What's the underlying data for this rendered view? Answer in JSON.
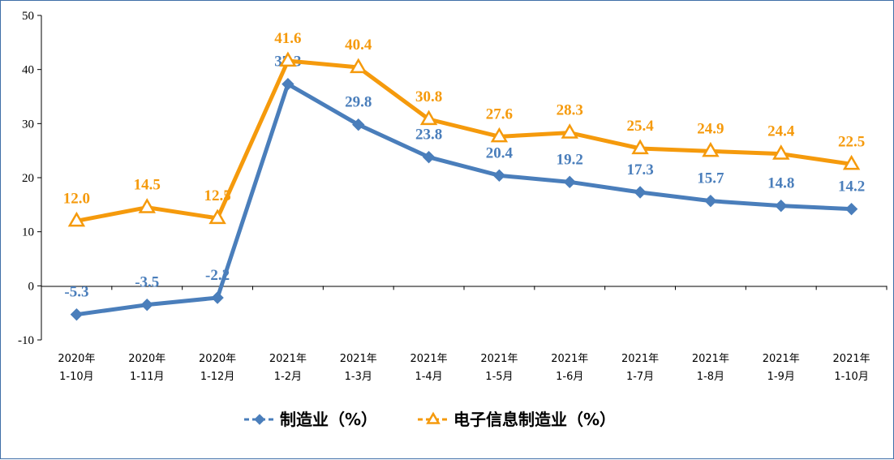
{
  "chart_data": {
    "type": "line",
    "categories": [
      [
        "2020年",
        "1-10月"
      ],
      [
        "2020年",
        "1-11月"
      ],
      [
        "2020年",
        "1-12月"
      ],
      [
        "2021年",
        "1-2月"
      ],
      [
        "2021年",
        "1-3月"
      ],
      [
        "2021年",
        "1-4月"
      ],
      [
        "2021年",
        "1-5月"
      ],
      [
        "2021年",
        "1-6月"
      ],
      [
        "2021年",
        "1-7月"
      ],
      [
        "2021年",
        "1-8月"
      ],
      [
        "2021年",
        "1-9月"
      ],
      [
        "2021年",
        "1-10月"
      ]
    ],
    "series": [
      {
        "name": "制造业（%）",
        "color": "#4a7ebb",
        "marker": "diamond",
        "values": [
          -5.3,
          -3.5,
          -2.2,
          37.3,
          29.8,
          23.8,
          20.4,
          19.2,
          17.3,
          15.7,
          14.8,
          14.2
        ],
        "labels": [
          "-5.3",
          "-3.5",
          "-2.2",
          "37.3",
          "29.8",
          "23.8",
          "20.4",
          "19.2",
          "17.3",
          "15.7",
          "14.8",
          "14.2"
        ]
      },
      {
        "name": "电子信息制造业（%）",
        "color": "#f59a0c",
        "marker": "triangle",
        "values": [
          12.0,
          14.5,
          12.5,
          41.6,
          40.4,
          30.8,
          27.6,
          28.3,
          25.4,
          24.9,
          24.4,
          22.5
        ],
        "labels": [
          "12.0",
          "14.5",
          "12.5",
          "41.6",
          "40.4",
          "30.8",
          "27.6",
          "28.3",
          "25.4",
          "24.9",
          "24.4",
          "22.5"
        ]
      }
    ],
    "yticks": [
      -10,
      0,
      10,
      20,
      30,
      40,
      50
    ],
    "ytick_labels": [
      "-10",
      "0",
      "10",
      "20",
      "30",
      "40",
      "50"
    ],
    "ylim": [
      -10,
      50
    ],
    "grid": false,
    "legend_position": "bottom-center"
  }
}
